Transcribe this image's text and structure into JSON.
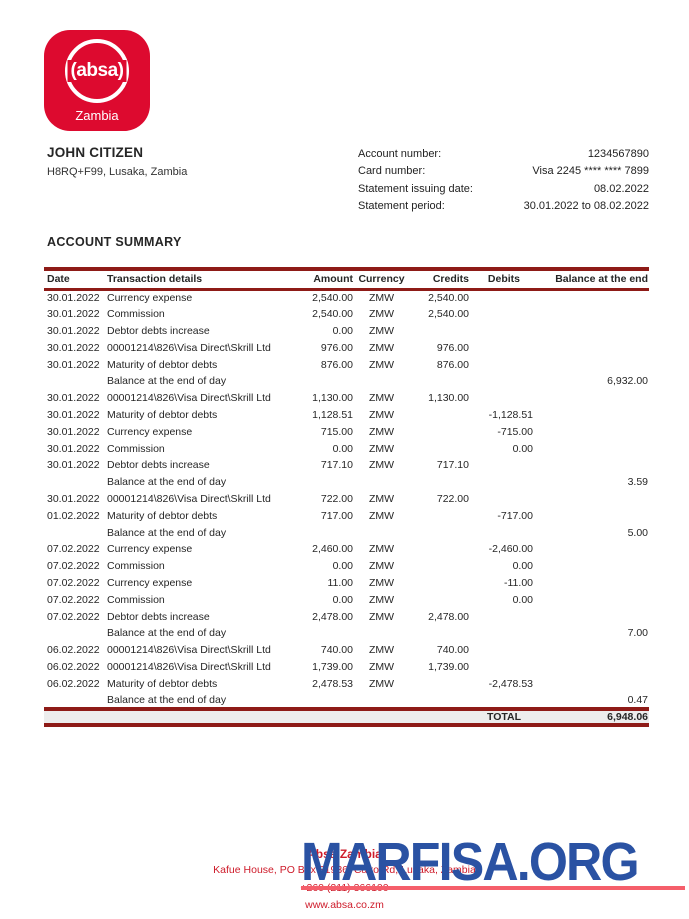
{
  "colors": {
    "brand_red": "#dd0a2f",
    "line_maroon": "#8e1b17",
    "footer_red": "#ce1b2a",
    "watermark_blue": "#2a52a3",
    "underline_pink": "#f55f6b"
  },
  "logo": {
    "brand": "(absa)",
    "region": "Zambia"
  },
  "customer": {
    "name": "JOHN CITIZEN",
    "address": "H8RQ+F99, Lusaka, Zambia"
  },
  "account_info": [
    {
      "label": "Account number:",
      "value": "1234567890"
    },
    {
      "label": "Card number:",
      "value": "Visa 2245 **** **** 7899"
    },
    {
      "label": "Statement issuing date:",
      "value": "08.02.2022"
    },
    {
      "label": "Statement period:",
      "value": "30.01.2022 to 08.02.2022"
    }
  ],
  "section_title": "ACCOUNT SUMMARY",
  "table": {
    "columns": [
      "Date",
      "Transaction details",
      "Amount",
      "Currency",
      "Credits",
      "Debits",
      "Balance at the end"
    ],
    "rows": [
      [
        "30.01.2022",
        "Currency expense",
        "2,540.00",
        "ZMW",
        "2,540.00",
        "",
        ""
      ],
      [
        "30.01.2022",
        "Commission",
        "2,540.00",
        "ZMW",
        "2,540.00",
        "",
        ""
      ],
      [
        "30.01.2022",
        "Debtor debts increase",
        "0.00",
        "ZMW",
        "",
        "",
        ""
      ],
      [
        "30.01.2022",
        "00001214\\826\\Visa Direct\\Skrill Ltd",
        "976.00",
        "ZMW",
        "976.00",
        "",
        ""
      ],
      [
        "30.01.2022",
        "Maturity of debtor debts",
        "876.00",
        "ZMW",
        "876.00",
        "",
        ""
      ],
      [
        "",
        "Balance at the end of day",
        "",
        "",
        "",
        "",
        "6,932.00"
      ],
      [
        "30.01.2022",
        "00001214\\826\\Visa Direct\\Skrill Ltd",
        "1,130.00",
        "ZMW",
        "1,130.00",
        "",
        ""
      ],
      [
        "30.01.2022",
        "Maturity of debtor debts",
        "1,128.51",
        "ZMW",
        "",
        "-1,128.51",
        ""
      ],
      [
        "30.01.2022",
        "Currency expense",
        "715.00",
        "ZMW",
        "",
        "-715.00",
        ""
      ],
      [
        "30.01.2022",
        "Commission",
        "0.00",
        "ZMW",
        "",
        "0.00",
        ""
      ],
      [
        "30.01.2022",
        "Debtor debts increase",
        "717.10",
        "ZMW",
        "717.10",
        "",
        ""
      ],
      [
        "",
        "Balance at the end of day",
        "",
        "",
        "",
        "",
        "3.59"
      ],
      [
        "30.01.2022",
        "00001214\\826\\Visa Direct\\Skrill Ltd",
        "722.00",
        "ZMW",
        "722.00",
        "",
        ""
      ],
      [
        "01.02.2022",
        "Maturity of debtor debts",
        "717.00",
        "ZMW",
        "",
        "-717.00",
        ""
      ],
      [
        "",
        "Balance at the end of day",
        "",
        "",
        "",
        "",
        "5.00"
      ],
      [
        "07.02.2022",
        "Currency expense",
        "2,460.00",
        "ZMW",
        "",
        "-2,460.00",
        ""
      ],
      [
        "07.02.2022",
        "Commission",
        "0.00",
        "ZMW",
        "",
        "0.00",
        ""
      ],
      [
        "07.02.2022",
        "Currency expense",
        "11.00",
        "ZMW",
        "",
        "-11.00",
        ""
      ],
      [
        "07.02.2022",
        "Commission",
        "0.00",
        "ZMW",
        "",
        "0.00",
        ""
      ],
      [
        "07.02.2022",
        "Debtor debts increase",
        "2,478.00",
        "ZMW",
        "2,478.00",
        "",
        ""
      ],
      [
        "",
        "Balance at the end of day",
        "",
        "",
        "",
        "",
        "7.00"
      ],
      [
        "06.02.2022",
        "00001214\\826\\Visa Direct\\Skrill Ltd",
        "740.00",
        "ZMW",
        "740.00",
        "",
        ""
      ],
      [
        "06.02.2022",
        "00001214\\826\\Visa Direct\\Skrill Ltd",
        "1,739.00",
        "ZMW",
        "1,739.00",
        "",
        ""
      ],
      [
        "06.02.2022",
        "Maturity of debtor debts",
        "2,478.53",
        "ZMW",
        "",
        "-2,478.53",
        ""
      ],
      [
        "",
        "Balance at the end of day",
        "",
        "",
        "",
        "",
        "0.47"
      ]
    ],
    "total_label": "TOTAL",
    "total_value": "6,948.06"
  },
  "footer": {
    "company": "Absa Zambia",
    "address": "Kafue House, PO Box 31936, Cairo Rd, Lusaka, Zambia",
    "phone": "+260 (211) 366100",
    "website": "www.absa.co.zm"
  },
  "watermark": {
    "text": "MARFISA.ORG"
  }
}
